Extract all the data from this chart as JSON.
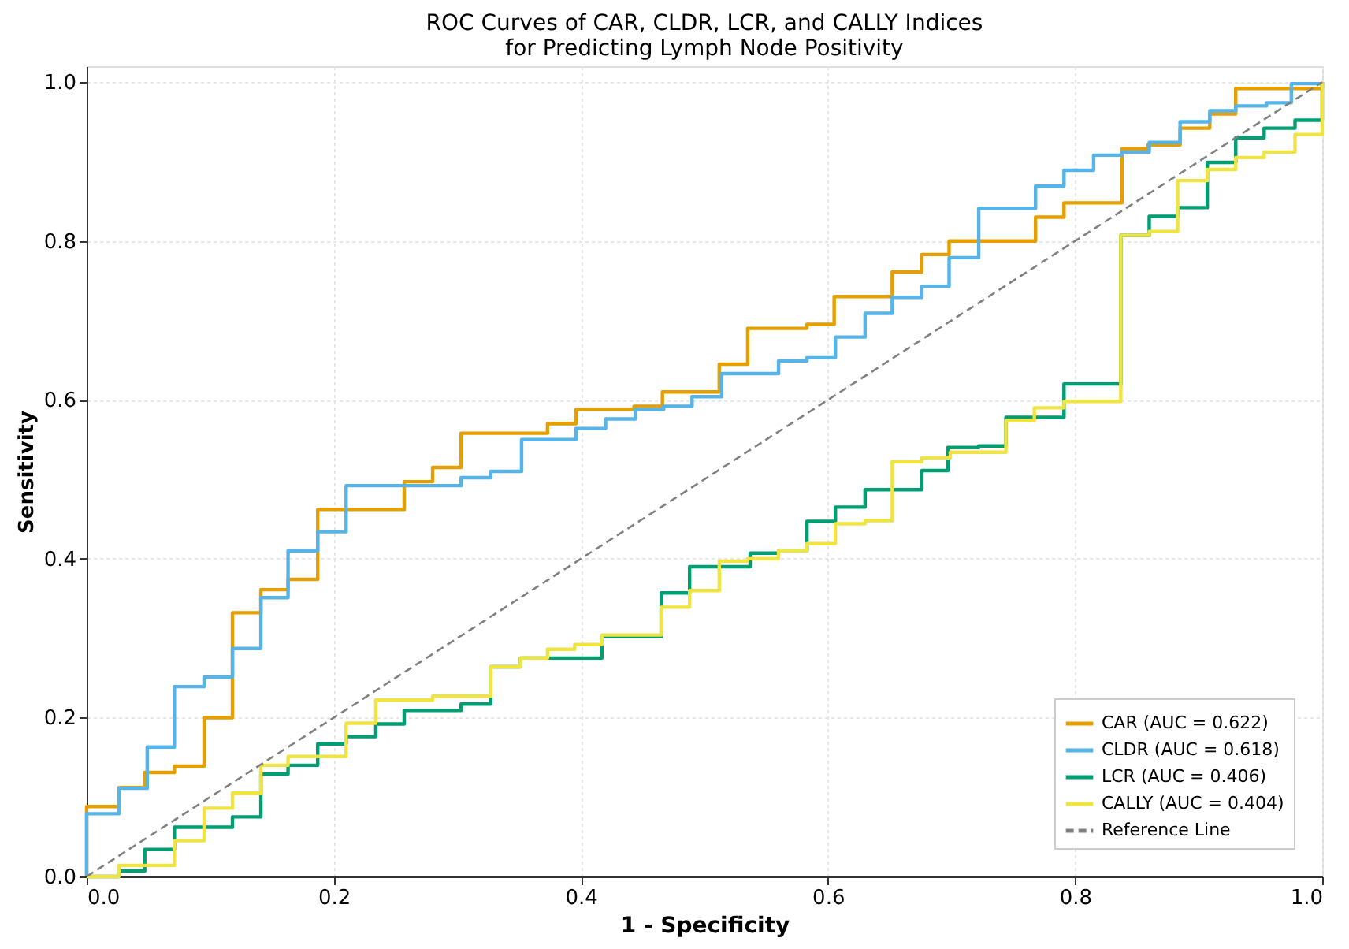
{
  "chart_data": {
    "type": "step",
    "title": "ROC Curves of CAR, CLDR, LCR, and CALLY Indices for Predicting Lymph Node Positivity",
    "xlabel": "1 - Specificity",
    "ylabel": "Sensitivity",
    "xlim": [
      0,
      1
    ],
    "ylim": [
      0,
      1.02
    ],
    "xticks": [
      {
        "value": 0,
        "label": "0.0"
      },
      {
        "value": 0.2,
        "label": "0.2"
      },
      {
        "value": 0.4,
        "label": "0.4"
      },
      {
        "value": 0.6,
        "label": "0.6"
      },
      {
        "value": 0.8,
        "label": "0.8"
      },
      {
        "value": 1,
        "label": "1.0"
      }
    ],
    "yticks": [
      {
        "value": 0,
        "label": "0.0"
      },
      {
        "value": 0.2,
        "label": "0.2"
      },
      {
        "value": 0.4,
        "label": "0.4"
      },
      {
        "value": 0.6,
        "label": "0.6"
      },
      {
        "value": 0.8,
        "label": "0.8"
      },
      {
        "value": 1,
        "label": "1.0"
      }
    ],
    "grid": true,
    "legend": "bottom right",
    "marker": "none",
    "series": [
      {
        "name": "CAR (AUC = 0.622)",
        "color": "#e69f00",
        "line_style": "solid",
        "x": [
          0,
          0,
          0.026,
          0.047,
          0.071,
          0.095,
          0.118,
          0.141,
          0.163,
          0.187,
          0.257,
          0.28,
          0.303,
          0.373,
          0.396,
          0.443,
          0.466,
          0.512,
          0.535,
          0.583,
          0.605,
          0.652,
          0.676,
          0.698,
          0.768,
          0.791,
          0.838,
          0.859,
          0.885,
          0.909,
          0.93,
          1
        ],
        "values": [
          0,
          0.088,
          0.112,
          0.131,
          0.139,
          0.2,
          0.332,
          0.361,
          0.374,
          0.462,
          0.497,
          0.515,
          0.558,
          0.57,
          0.588,
          0.592,
          0.61,
          0.645,
          0.69,
          0.695,
          0.73,
          0.761,
          0.783,
          0.8,
          0.83,
          0.848,
          0.916,
          0.921,
          0.942,
          0.96,
          0.992,
          1
        ]
      },
      {
        "name": "CLDR (AUC = 0.618)",
        "color": "#56b4e9",
        "line_style": "solid",
        "x": [
          0,
          0,
          0.026,
          0.049,
          0.071,
          0.095,
          0.118,
          0.141,
          0.163,
          0.187,
          0.21,
          0.303,
          0.327,
          0.352,
          0.396,
          0.42,
          0.444,
          0.467,
          0.49,
          0.514,
          0.56,
          0.583,
          0.606,
          0.63,
          0.652,
          0.676,
          0.698,
          0.722,
          0.768,
          0.791,
          0.815,
          0.838,
          0.86,
          0.885,
          0.909,
          0.93,
          0.955,
          0.975,
          1
        ],
        "values": [
          0,
          0.079,
          0.111,
          0.163,
          0.239,
          0.251,
          0.287,
          0.351,
          0.41,
          0.434,
          0.492,
          0.502,
          0.51,
          0.55,
          0.564,
          0.576,
          0.588,
          0.592,
          0.604,
          0.633,
          0.649,
          0.653,
          0.679,
          0.709,
          0.729,
          0.743,
          0.779,
          0.841,
          0.869,
          0.889,
          0.908,
          0.912,
          0.924,
          0.95,
          0.964,
          0.97,
          0.974,
          0.998,
          1
        ]
      },
      {
        "name": "LCR (AUC = 0.406)",
        "color": "#009e73",
        "line_style": "solid",
        "x": [
          0,
          0.026,
          0.047,
          0.071,
          0.118,
          0.141,
          0.163,
          0.187,
          0.21,
          0.234,
          0.257,
          0.303,
          0.327,
          0.351,
          0.417,
          0.465,
          0.488,
          0.537,
          0.56,
          0.583,
          0.606,
          0.63,
          0.676,
          0.697,
          0.722,
          0.744,
          0.791,
          0.837,
          0.86,
          0.883,
          0.907,
          0.93,
          0.953,
          0.978,
          1
        ],
        "values": [
          0,
          0.007,
          0.034,
          0.062,
          0.075,
          0.129,
          0.14,
          0.167,
          0.176,
          0.192,
          0.209,
          0.217,
          0.264,
          0.275,
          0.302,
          0.357,
          0.39,
          0.407,
          0.41,
          0.447,
          0.465,
          0.487,
          0.511,
          0.54,
          0.542,
          0.578,
          0.62,
          0.807,
          0.831,
          0.842,
          0.899,
          0.93,
          0.942,
          0.952,
          1
        ]
      },
      {
        "name": "CALLY (AUC = 0.404)",
        "color": "#f0e442",
        "line_style": "solid",
        "x": [
          0,
          0.026,
          0.071,
          0.095,
          0.118,
          0.141,
          0.163,
          0.21,
          0.234,
          0.28,
          0.327,
          0.351,
          0.373,
          0.395,
          0.417,
          0.465,
          0.488,
          0.512,
          0.535,
          0.56,
          0.583,
          0.606,
          0.63,
          0.652,
          0.676,
          0.699,
          0.744,
          0.767,
          0.791,
          0.837,
          0.86,
          0.883,
          0.907,
          0.93,
          0.953,
          0.978,
          1
        ],
        "values": [
          0,
          0.014,
          0.045,
          0.086,
          0.105,
          0.14,
          0.151,
          0.193,
          0.222,
          0.227,
          0.264,
          0.275,
          0.286,
          0.292,
          0.304,
          0.339,
          0.36,
          0.397,
          0.4,
          0.41,
          0.419,
          0.444,
          0.448,
          0.522,
          0.527,
          0.534,
          0.574,
          0.59,
          0.598,
          0.807,
          0.812,
          0.876,
          0.89,
          0.905,
          0.912,
          0.934,
          1
        ]
      },
      {
        "name": "Reference Line",
        "type": "line",
        "line_style": "dashed",
        "color": "#808080",
        "x": [
          0,
          1
        ],
        "values": [
          0,
          1
        ]
      }
    ]
  }
}
